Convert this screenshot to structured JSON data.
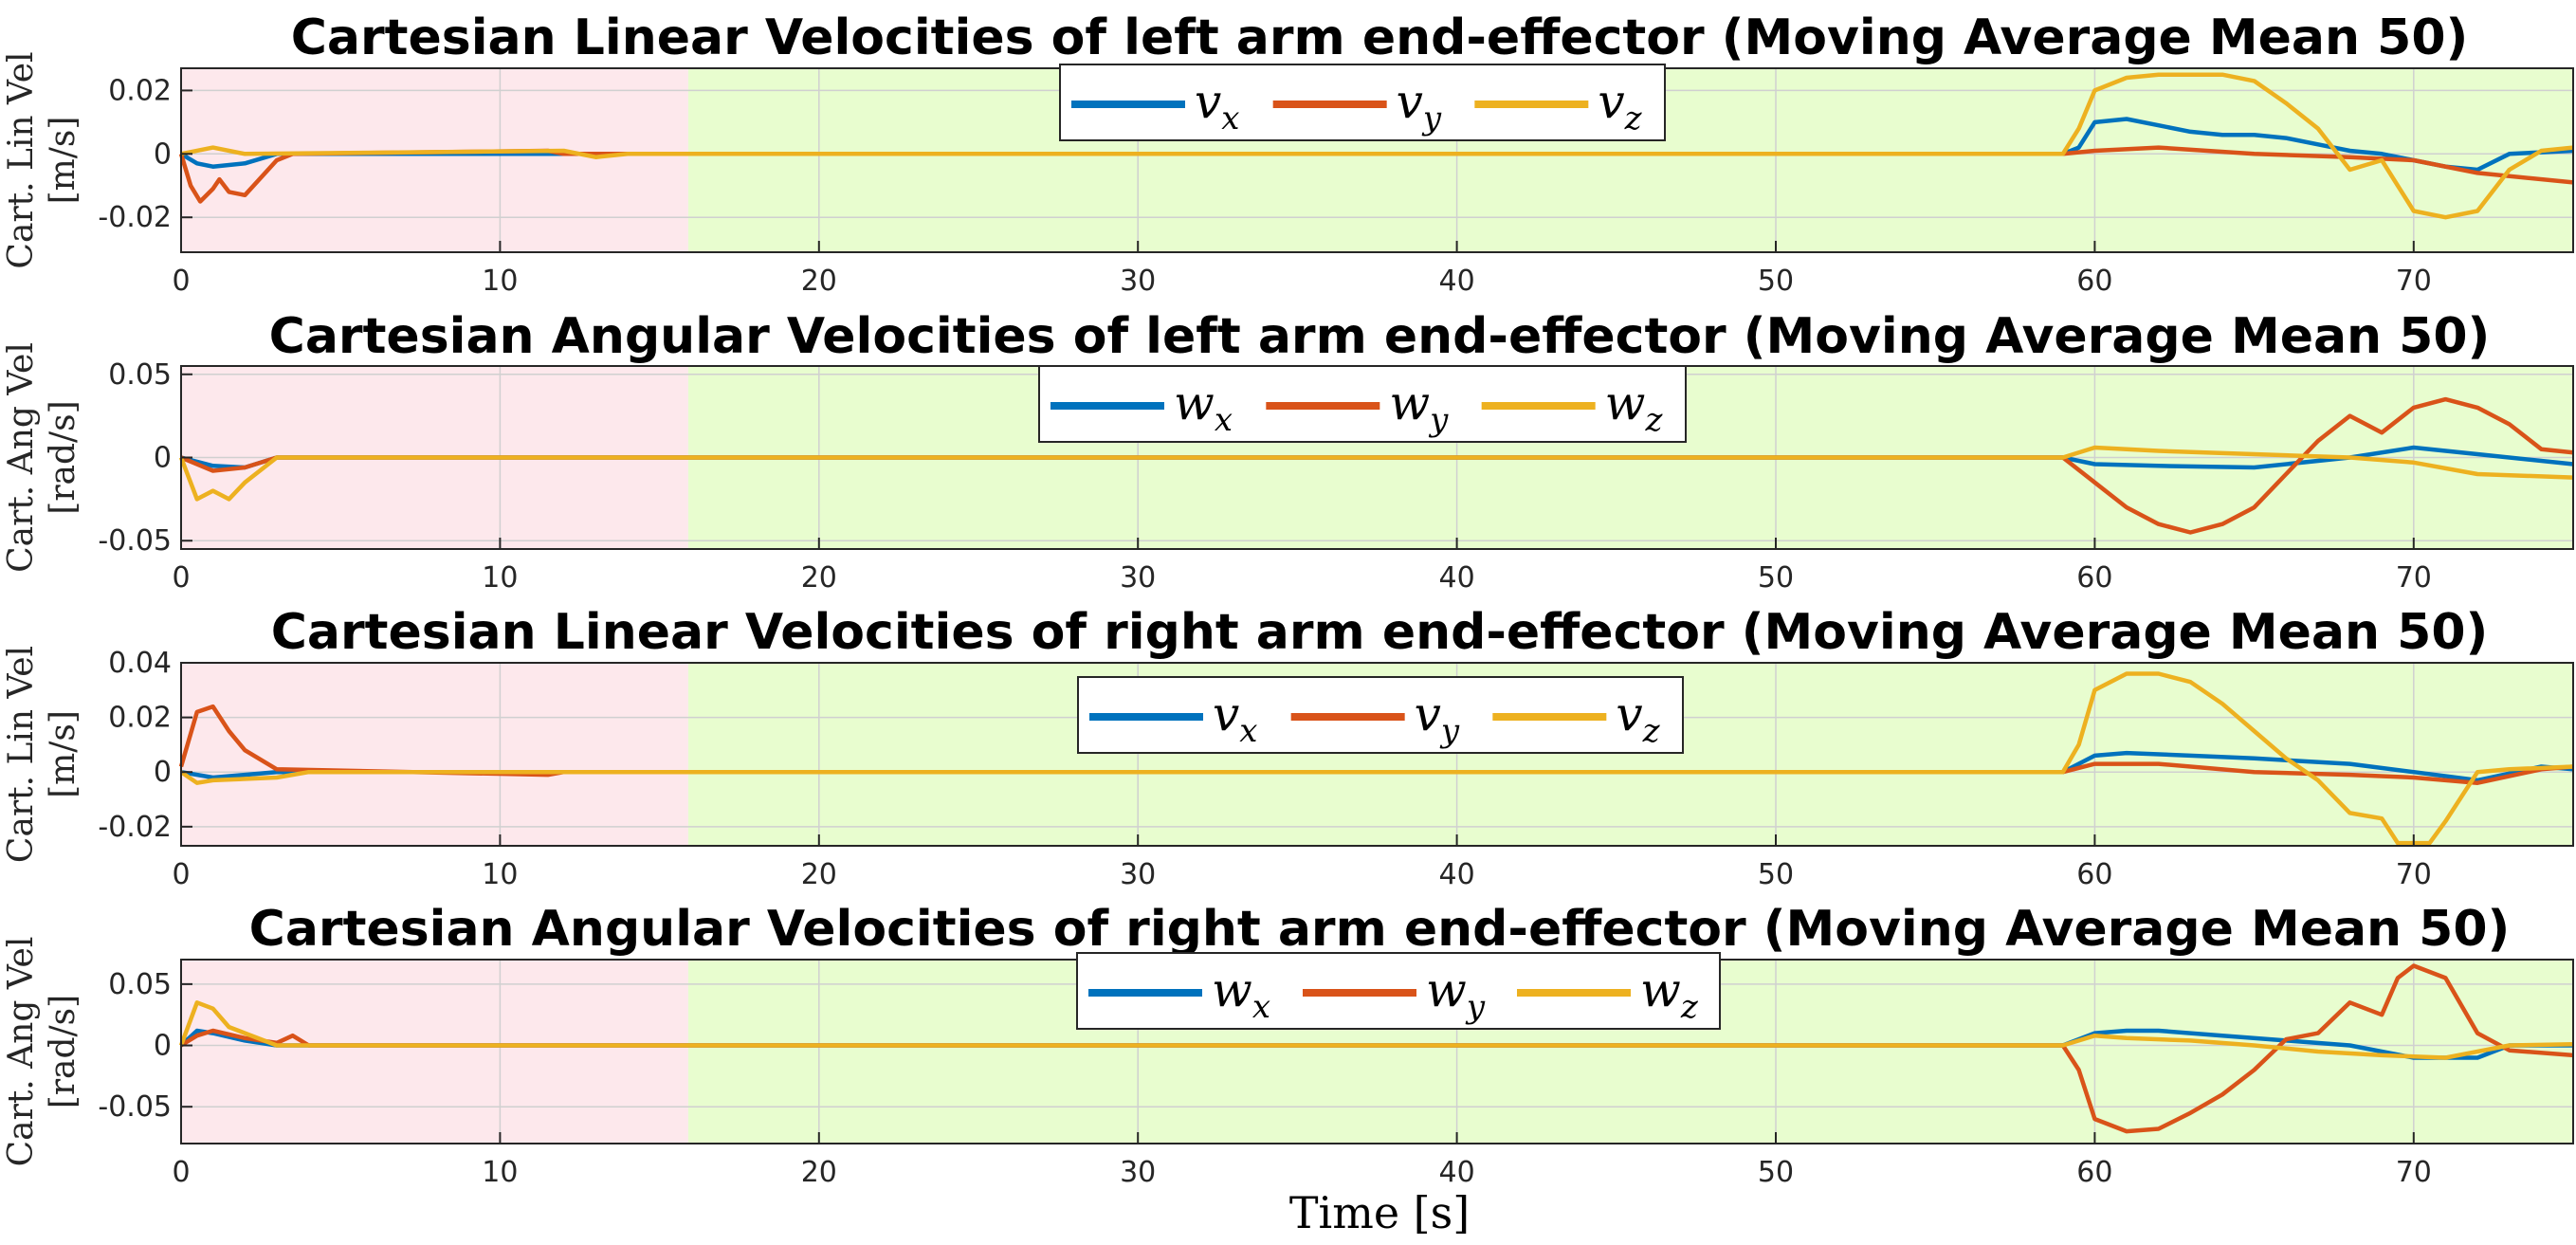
{
  "figure": {
    "xlabel": "Time [s]",
    "colors": {
      "x": "#0072BD",
      "y": "#D95319",
      "z": "#EDB120"
    },
    "phase_colors": {
      "phase1": "#FDE8EC",
      "phase2": "#E8FDCF"
    }
  },
  "chart_data": [
    {
      "type": "line",
      "title": "Cartesian Linear Velocities of left arm end-effector (Moving Average Mean 50)",
      "ylabel": [
        "Cart. Lin Vel",
        "[m/s]"
      ],
      "xlim": [
        0,
        75
      ],
      "ylim": [
        -0.031,
        0.027
      ],
      "xticks": [
        0,
        10,
        20,
        30,
        40,
        50,
        60,
        70
      ],
      "yticks": [
        0.02,
        0,
        -0.02
      ],
      "ytick_labels": [
        "0.02",
        "0",
        "-0.02"
      ],
      "phases": [
        [
          0,
          15.9
        ],
        [
          15.9,
          75
        ]
      ],
      "legend": [
        {
          "sym": "v",
          "sub": "x"
        },
        {
          "sym": "v",
          "sub": "y"
        },
        {
          "sym": "v",
          "sub": "z"
        }
      ],
      "series": [
        {
          "key": "x",
          "points": [
            [
              0,
              0
            ],
            [
              0.5,
              -0.003
            ],
            [
              1,
              -0.004
            ],
            [
              2,
              -0.003
            ],
            [
              3,
              0
            ],
            [
              15,
              0
            ],
            [
              59,
              0
            ],
            [
              59.5,
              0.002
            ],
            [
              60,
              0.01
            ],
            [
              61,
              0.011
            ],
            [
              62,
              0.009
            ],
            [
              63,
              0.007
            ],
            [
              64,
              0.006
            ],
            [
              65,
              0.006
            ],
            [
              66,
              0.005
            ],
            [
              67,
              0.003
            ],
            [
              68,
              0.001
            ],
            [
              69,
              0
            ],
            [
              70,
              -0.002
            ],
            [
              71,
              -0.004
            ],
            [
              72,
              -0.005
            ],
            [
              73,
              0
            ],
            [
              75,
              0.001
            ]
          ]
        },
        {
          "key": "y",
          "points": [
            [
              0,
              0
            ],
            [
              0.3,
              -0.01
            ],
            [
              0.6,
              -0.015
            ],
            [
              1,
              -0.011
            ],
            [
              1.2,
              -0.008
            ],
            [
              1.5,
              -0.012
            ],
            [
              2,
              -0.013
            ],
            [
              3,
              -0.002
            ],
            [
              3.5,
              0
            ],
            [
              11.5,
              0.001
            ],
            [
              12,
              0
            ],
            [
              59,
              0
            ],
            [
              60,
              0.001
            ],
            [
              62,
              0.002
            ],
            [
              65,
              0
            ],
            [
              68,
              -0.001
            ],
            [
              70,
              -0.002
            ],
            [
              72,
              -0.006
            ],
            [
              75,
              -0.009
            ]
          ]
        },
        {
          "key": "z",
          "points": [
            [
              0,
              0
            ],
            [
              1,
              0.002
            ],
            [
              2,
              0
            ],
            [
              12,
              0.001
            ],
            [
              13,
              -0.001
            ],
            [
              14,
              0
            ],
            [
              59,
              0
            ],
            [
              59.5,
              0.008
            ],
            [
              60,
              0.02
            ],
            [
              61,
              0.024
            ],
            [
              62,
              0.025
            ],
            [
              64,
              0.025
            ],
            [
              65,
              0.023
            ],
            [
              66,
              0.016
            ],
            [
              67,
              0.008
            ],
            [
              68,
              -0.005
            ],
            [
              69,
              -0.002
            ],
            [
              69.5,
              -0.01
            ],
            [
              70,
              -0.018
            ],
            [
              71,
              -0.02
            ],
            [
              72,
              -0.018
            ],
            [
              73,
              -0.005
            ],
            [
              74,
              0.001
            ],
            [
              75,
              0.002
            ]
          ]
        }
      ]
    },
    {
      "type": "line",
      "title": "Cartesian Angular Velocities of left arm end-effector (Moving Average Mean 50)",
      "ylabel": [
        "Cart. Ang Vel",
        "[rad/s]"
      ],
      "xlim": [
        0,
        75
      ],
      "ylim": [
        -0.055,
        0.055
      ],
      "xticks": [
        0,
        10,
        20,
        30,
        40,
        50,
        60,
        70
      ],
      "yticks": [
        0.05,
        0,
        -0.05
      ],
      "ytick_labels": [
        "0.05",
        "0",
        "-0.05"
      ],
      "phases": [
        [
          0,
          15.9
        ],
        [
          15.9,
          75
        ]
      ],
      "legend": [
        {
          "sym": "w",
          "sub": "x"
        },
        {
          "sym": "w",
          "sub": "y"
        },
        {
          "sym": "w",
          "sub": "z"
        }
      ],
      "series": [
        {
          "key": "x",
          "points": [
            [
              0,
              0
            ],
            [
              1,
              -0.005
            ],
            [
              2,
              -0.006
            ],
            [
              3,
              0
            ],
            [
              59,
              0
            ],
            [
              60,
              -0.004
            ],
            [
              62,
              -0.005
            ],
            [
              65,
              -0.006
            ],
            [
              68,
              0
            ],
            [
              70,
              0.006
            ],
            [
              72,
              0.002
            ],
            [
              75,
              -0.004
            ]
          ]
        },
        {
          "key": "y",
          "points": [
            [
              0,
              0
            ],
            [
              1,
              -0.008
            ],
            [
              2,
              -0.006
            ],
            [
              3,
              0
            ],
            [
              59,
              0
            ],
            [
              60,
              -0.015
            ],
            [
              61,
              -0.03
            ],
            [
              62,
              -0.04
            ],
            [
              63,
              -0.045
            ],
            [
              64,
              -0.04
            ],
            [
              65,
              -0.03
            ],
            [
              66,
              -0.01
            ],
            [
              67,
              0.01
            ],
            [
              68,
              0.025
            ],
            [
              69,
              0.015
            ],
            [
              70,
              0.03
            ],
            [
              71,
              0.035
            ],
            [
              72,
              0.03
            ],
            [
              73,
              0.02
            ],
            [
              74,
              0.005
            ],
            [
              75,
              0.003
            ]
          ]
        },
        {
          "key": "z",
          "points": [
            [
              0,
              0
            ],
            [
              0.5,
              -0.025
            ],
            [
              1,
              -0.02
            ],
            [
              1.5,
              -0.025
            ],
            [
              2,
              -0.015
            ],
            [
              3,
              0
            ],
            [
              59,
              0
            ],
            [
              60,
              0.006
            ],
            [
              62,
              0.004
            ],
            [
              65,
              0.002
            ],
            [
              68,
              0
            ],
            [
              70,
              -0.003
            ],
            [
              72,
              -0.01
            ],
            [
              75,
              -0.012
            ]
          ]
        }
      ]
    },
    {
      "type": "line",
      "title": "Cartesian Linear Velocities of right arm end-effector (Moving Average Mean 50)",
      "ylabel": [
        "Cart. Lin Vel",
        "[m/s]"
      ],
      "xlim": [
        0,
        75
      ],
      "ylim": [
        -0.027,
        0.04
      ],
      "xticks": [
        0,
        10,
        20,
        30,
        40,
        50,
        60,
        70
      ],
      "yticks": [
        0.04,
        0.02,
        0,
        -0.02
      ],
      "ytick_labels": [
        "0.04",
        "0.02",
        "0",
        "-0.02"
      ],
      "phases": [
        [
          0,
          15.9
        ],
        [
          15.9,
          75
        ]
      ],
      "legend": [
        {
          "sym": "v",
          "sub": "x"
        },
        {
          "sym": "v",
          "sub": "y"
        },
        {
          "sym": "v",
          "sub": "z"
        }
      ],
      "series": [
        {
          "key": "x",
          "points": [
            [
              0,
              0
            ],
            [
              1,
              -0.002
            ],
            [
              2,
              -0.001
            ],
            [
              3,
              0
            ],
            [
              59,
              0
            ],
            [
              60,
              0.006
            ],
            [
              61,
              0.007
            ],
            [
              63,
              0.006
            ],
            [
              65,
              0.005
            ],
            [
              68,
              0.003
            ],
            [
              70,
              0
            ],
            [
              72,
              -0.003
            ],
            [
              74,
              0.002
            ],
            [
              75,
              0.001
            ]
          ]
        },
        {
          "key": "y",
          "points": [
            [
              0,
              0.002
            ],
            [
              0.5,
              0.022
            ],
            [
              1,
              0.024
            ],
            [
              1.5,
              0.015
            ],
            [
              2,
              0.008
            ],
            [
              3,
              0.001
            ],
            [
              11.5,
              -0.001
            ],
            [
              12,
              0
            ],
            [
              59,
              0
            ],
            [
              60,
              0.003
            ],
            [
              62,
              0.003
            ],
            [
              65,
              0
            ],
            [
              68,
              -0.001
            ],
            [
              70,
              -0.002
            ],
            [
              72,
              -0.004
            ],
            [
              74,
              0.001
            ],
            [
              75,
              0.002
            ]
          ]
        },
        {
          "key": "z",
          "points": [
            [
              0,
              0
            ],
            [
              0.5,
              -0.004
            ],
            [
              1,
              -0.003
            ],
            [
              3,
              -0.002
            ],
            [
              4,
              0
            ],
            [
              59,
              0
            ],
            [
              59.5,
              0.01
            ],
            [
              60,
              0.03
            ],
            [
              61,
              0.036
            ],
            [
              62,
              0.036
            ],
            [
              63,
              0.033
            ],
            [
              64,
              0.025
            ],
            [
              65,
              0.015
            ],
            [
              66,
              0.005
            ],
            [
              67,
              -0.003
            ],
            [
              68,
              -0.015
            ],
            [
              69,
              -0.017
            ],
            [
              69.5,
              -0.026
            ],
            [
              70.5,
              -0.026
            ],
            [
              71,
              -0.018
            ],
            [
              72,
              0
            ],
            [
              73,
              0.001
            ],
            [
              75,
              0.002
            ]
          ]
        }
      ]
    },
    {
      "type": "line",
      "title": "Cartesian Angular Velocities of right arm end-effector (Moving Average Mean 50)",
      "ylabel": [
        "Cart. Ang Vel",
        "[rad/s]"
      ],
      "xlim": [
        0,
        75
      ],
      "ylim": [
        -0.08,
        0.07
      ],
      "xticks": [
        0,
        10,
        20,
        30,
        40,
        50,
        60,
        70
      ],
      "yticks": [
        0.05,
        0,
        -0.05
      ],
      "ytick_labels": [
        "0.05",
        "0",
        "-0.05"
      ],
      "phases": [
        [
          0,
          15.9
        ],
        [
          15.9,
          75
        ]
      ],
      "legend": [
        {
          "sym": "w",
          "sub": "x"
        },
        {
          "sym": "w",
          "sub": "y"
        },
        {
          "sym": "w",
          "sub": "z"
        }
      ],
      "series": [
        {
          "key": "x",
          "points": [
            [
              0,
              0
            ],
            [
              0.5,
              0.012
            ],
            [
              1,
              0.01
            ],
            [
              2,
              0.004
            ],
            [
              3,
              0
            ],
            [
              59,
              0
            ],
            [
              60,
              0.01
            ],
            [
              61,
              0.012
            ],
            [
              62,
              0.012
            ],
            [
              64,
              0.008
            ],
            [
              66,
              0.004
            ],
            [
              68,
              0
            ],
            [
              70,
              -0.01
            ],
            [
              72,
              -0.01
            ],
            [
              73,
              0
            ],
            [
              75,
              0
            ]
          ]
        },
        {
          "key": "y",
          "points": [
            [
              0,
              0
            ],
            [
              0.5,
              0.008
            ],
            [
              1,
              0.012
            ],
            [
              2,
              0.006
            ],
            [
              3,
              0.002
            ],
            [
              3.5,
              0.008
            ],
            [
              4,
              0
            ],
            [
              59,
              0
            ],
            [
              59.5,
              -0.02
            ],
            [
              60,
              -0.06
            ],
            [
              61,
              -0.07
            ],
            [
              62,
              -0.068
            ],
            [
              63,
              -0.055
            ],
            [
              64,
              -0.04
            ],
            [
              65,
              -0.02
            ],
            [
              66,
              0.005
            ],
            [
              67,
              0.01
            ],
            [
              68,
              0.035
            ],
            [
              69,
              0.025
            ],
            [
              69.5,
              0.055
            ],
            [
              70,
              0.065
            ],
            [
              71,
              0.055
            ],
            [
              72,
              0.01
            ],
            [
              73,
              -0.004
            ],
            [
              75,
              -0.008
            ]
          ]
        },
        {
          "key": "z",
          "points": [
            [
              0,
              0
            ],
            [
              0.5,
              0.035
            ],
            [
              1,
              0.03
            ],
            [
              1.5,
              0.015
            ],
            [
              2,
              0.01
            ],
            [
              3,
              0
            ],
            [
              59,
              0
            ],
            [
              60,
              0.008
            ],
            [
              61,
              0.006
            ],
            [
              63,
              0.004
            ],
            [
              65,
              0
            ],
            [
              67,
              -0.005
            ],
            [
              69,
              -0.008
            ],
            [
              71,
              -0.01
            ],
            [
              72,
              -0.005
            ],
            [
              73,
              0
            ],
            [
              75,
              0.001
            ]
          ]
        }
      ]
    }
  ]
}
